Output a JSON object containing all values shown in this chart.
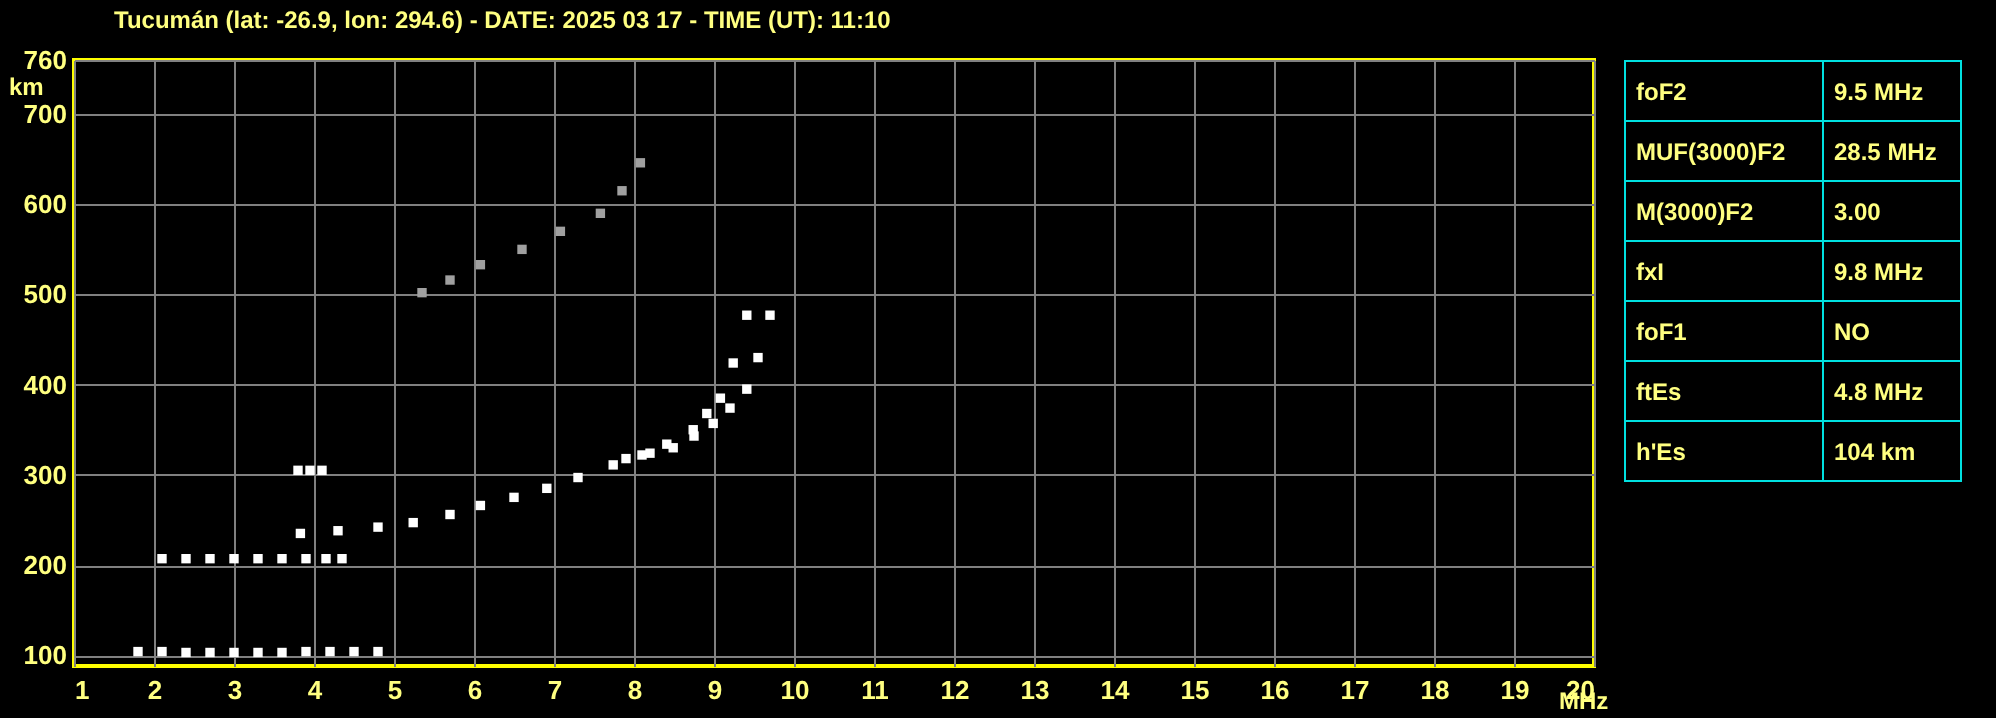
{
  "chart_data": [
    {
      "type": "scatter",
      "title": "Tucumán (lat: -26.9, lon: 294.6) - DATE: 2025 03 17 - TIME (UT): 11:10",
      "xlabel": "MHz",
      "ylabel": "km",
      "xlim": [
        1,
        20
      ],
      "ylim": [
        88,
        760
      ],
      "xticks": [
        1,
        2,
        3,
        4,
        5,
        6,
        7,
        8,
        9,
        10,
        11,
        12,
        13,
        14,
        15,
        16,
        17,
        18,
        19,
        20
      ],
      "yticks": [
        100,
        200,
        300,
        400,
        500,
        600,
        700,
        760
      ],
      "grid": true,
      "marker": "square",
      "series": [
        {
          "color": "#ffffff",
          "x": [
            1.8,
            2.1,
            2.4,
            2.7,
            3.0,
            3.3,
            3.6,
            3.9,
            4.2,
            4.5,
            4.8
          ],
          "values": [
            104,
            104,
            103,
            103,
            103,
            103,
            103,
            104,
            104,
            104,
            104
          ]
        },
        {
          "color": "#ffffff",
          "x": [
            2.1,
            2.4,
            2.7,
            3.0,
            3.3,
            3.6,
            3.9,
            4.15,
            4.35
          ],
          "values": [
            207,
            207,
            207,
            207,
            207,
            207,
            207,
            207,
            207
          ]
        },
        {
          "color": "#ffffff",
          "x": [
            3.8,
            3.95,
            4.1
          ],
          "values": [
            305,
            305,
            305
          ]
        },
        {
          "color": "#ffffff",
          "x": [
            3.83,
            4.3,
            4.8,
            5.24,
            5.7,
            6.08,
            6.5,
            6.91,
            7.3,
            7.74,
            8.1,
            8.41,
            8.74,
            8.91,
            9.08,
            9.24,
            9.41
          ],
          "values": [
            235,
            238,
            242,
            247,
            256,
            266,
            275,
            285,
            297,
            311,
            322,
            334,
            350,
            368,
            385,
            424,
            477
          ]
        },
        {
          "color": "#ffffff",
          "x": [
            7.9,
            8.2,
            8.49,
            8.75,
            8.99,
            9.2,
            9.41,
            9.55,
            9.7
          ],
          "values": [
            318,
            324,
            330,
            343,
            357,
            374,
            395,
            430,
            477
          ]
        },
        {
          "color": "#a0a0a0",
          "x": [
            5.35,
            5.7,
            6.08,
            6.6,
            7.08,
            7.58,
            7.85,
            8.08
          ],
          "values": [
            502,
            516,
            533,
            550,
            570,
            590,
            615,
            646
          ]
        }
      ]
    },
    {
      "type": "other",
      "annotations": [
        "foF2",
        "9.5 MHz",
        "MUF(3000)F2",
        "28.5 MHz",
        "M(3000)F2",
        "3.00",
        "fxI",
        "9.8 MHz",
        "foF1",
        "NO",
        "ftEs",
        "4.8 MHz",
        "h'Es",
        "104 km"
      ]
    }
  ]
}
